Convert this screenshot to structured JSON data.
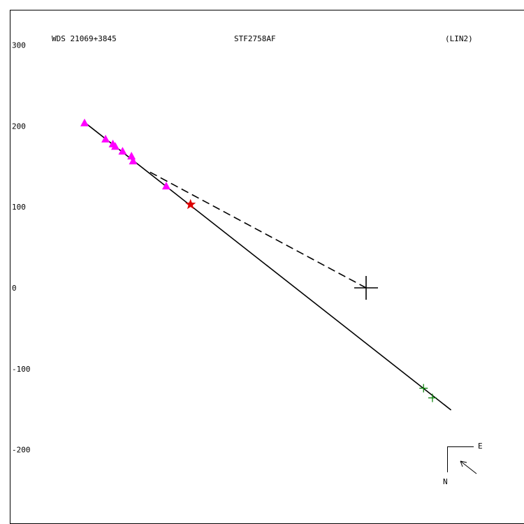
{
  "chart_data": {
    "type": "scatter",
    "header": {
      "left": "WDS 21069+3845",
      "center": "STF2758AF",
      "right": "(LIN2)"
    },
    "y_ticks": [
      300,
      200,
      100,
      0,
      -100,
      -200
    ],
    "axis_range": {
      "x": [
        -290,
        335
      ],
      "y": [
        -290,
        340
      ]
    },
    "primary_star": {
      "x": 0,
      "y": 0
    },
    "orbit_line": {
      "from": {
        "x": -346,
        "y": 203
      },
      "to": {
        "x": 105,
        "y": -151
      }
    },
    "dashed_connector": {
      "from": {
        "x": -267,
        "y": 143
      },
      "to": {
        "x": 0,
        "y": 0
      }
    },
    "series": [
      {
        "marker": "triangle",
        "color": "#ff00ff",
        "points": [
          {
            "x": -348,
            "y": 204
          },
          {
            "x": -322,
            "y": 184
          },
          {
            "x": -313,
            "y": 178
          },
          {
            "x": -310,
            "y": 175
          },
          {
            "x": -301,
            "y": 169
          },
          {
            "x": -290,
            "y": 163
          },
          {
            "x": -288,
            "y": 157
          },
          {
            "x": -247,
            "y": 126
          }
        ]
      },
      {
        "marker": "star",
        "color": "#dd0000",
        "points": [
          {
            "x": -217,
            "y": 103
          }
        ]
      },
      {
        "marker": "plus",
        "color": "#008000",
        "points": [
          {
            "x": 71,
            "y": -124
          },
          {
            "x": 82,
            "y": -136
          }
        ]
      }
    ],
    "compass": {
      "east_label": "E",
      "north_label": "N"
    }
  }
}
